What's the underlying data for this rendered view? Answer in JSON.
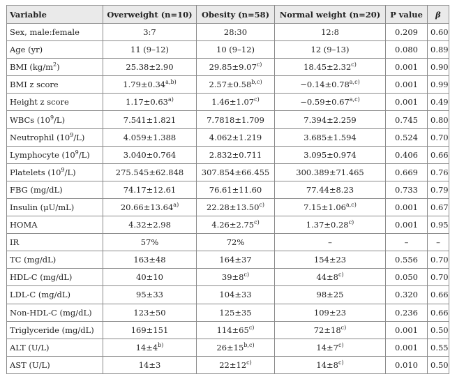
{
  "table": {
    "headers": [
      {
        "label": "Variable"
      },
      {
        "label": "Overweight (n=10)"
      },
      {
        "label": "Obesity (n=58)"
      },
      {
        "label": "Normal weight (n=20)"
      },
      {
        "label": "P value"
      },
      {
        "label": "β"
      }
    ],
    "rows": [
      {
        "variable": "Sex, male:female",
        "variable_sup": "",
        "variable_suffix": "",
        "overweight": "3:7",
        "overweight_sup": "",
        "obesity": "28:30",
        "obesity_sup": "",
        "normal": "12:8",
        "normal_sup": "",
        "p": "0.209",
        "beta": "0.60"
      },
      {
        "variable": "Age (yr)",
        "variable_sup": "",
        "variable_suffix": "",
        "overweight": "11 (9–12)",
        "overweight_sup": "",
        "obesity": "10 (9–12)",
        "obesity_sup": "",
        "normal": "12 (9–13)",
        "normal_sup": "",
        "p": "0.080",
        "beta": "0.89"
      },
      {
        "variable": "BMI (kg/m",
        "variable_sup": "2",
        "variable_suffix": ")",
        "overweight": "25.38±2.90",
        "overweight_sup": "",
        "obesity": "29.85±9.07",
        "obesity_sup": "c)",
        "normal": "18.45±2.32",
        "normal_sup": "c)",
        "p": "0.001",
        "beta": "0.90"
      },
      {
        "variable": "BMI z score",
        "variable_sup": "",
        "variable_suffix": "",
        "overweight": "1.79±0.34",
        "overweight_sup": "a,b)",
        "obesity": "2.57±0.58",
        "obesity_sup": "b,c)",
        "normal": "−0.14±0.78",
        "normal_sup": "a,c)",
        "p": "0.001",
        "beta": "0.99"
      },
      {
        "variable": "Height z score",
        "variable_sup": "",
        "variable_suffix": "",
        "overweight": "1.17±0.63",
        "overweight_sup": "a)",
        "obesity": "1.46±1.07",
        "obesity_sup": "c)",
        "normal": "−0.59±0.67",
        "normal_sup": "a,c)",
        "p": "0.001",
        "beta": "0.49"
      },
      {
        "variable": "WBCs (10",
        "variable_sup": "9",
        "variable_suffix": "/L)",
        "overweight": "7.541±1.821",
        "overweight_sup": "",
        "obesity": "7.7818±1.709",
        "obesity_sup": "",
        "normal": "7.394±2.259",
        "normal_sup": "",
        "p": "0.745",
        "beta": "0.80"
      },
      {
        "variable": "Neutrophil (10",
        "variable_sup": "9",
        "variable_suffix": "/L)",
        "overweight": "4.059±1.388",
        "overweight_sup": "",
        "obesity": "4.062±1.219",
        "obesity_sup": "",
        "normal": "3.685±1.594",
        "normal_sup": "",
        "p": "0.524",
        "beta": "0.70"
      },
      {
        "variable": "Lymphocyte (10",
        "variable_sup": "9",
        "variable_suffix": "/L)",
        "overweight": "3.040±0.764",
        "overweight_sup": "",
        "obesity": "2.832±0.711",
        "obesity_sup": "",
        "normal": "3.095±0.974",
        "normal_sup": "",
        "p": "0.406",
        "beta": "0.66"
      },
      {
        "variable": "Platelets (10",
        "variable_sup": "9",
        "variable_suffix": "/L)",
        "overweight": "275.545±62.848",
        "overweight_sup": "",
        "obesity": "307.854±66.455",
        "obesity_sup": "",
        "normal": "300.389±71.465",
        "normal_sup": "",
        "p": "0.669",
        "beta": "0.76"
      },
      {
        "variable": "FBG (mg/dL)",
        "variable_sup": "",
        "variable_suffix": "",
        "overweight": "74.17±12.61",
        "overweight_sup": "",
        "obesity": "76.61±11.60",
        "obesity_sup": "",
        "normal": "77.44±8.23",
        "normal_sup": "",
        "p": "0.733",
        "beta": "0.79"
      },
      {
        "variable": "Insulin (μU/mL)",
        "variable_sup": "",
        "variable_suffix": "",
        "overweight": "20.66±13.64",
        "overweight_sup": "a)",
        "obesity": "22.28±13.50",
        "obesity_sup": "c)",
        "normal": "7.15±1.06",
        "normal_sup": "a,c)",
        "p": "0.001",
        "beta": "0.67"
      },
      {
        "variable": "HOMA",
        "variable_sup": "",
        "variable_suffix": "",
        "overweight": "4.32±2.98",
        "overweight_sup": "",
        "obesity": "4.26±2.75",
        "obesity_sup": "c)",
        "normal": "1.37±0.28",
        "normal_sup": "c)",
        "p": "0.001",
        "beta": "0.95"
      },
      {
        "variable": "IR",
        "variable_sup": "",
        "variable_suffix": "",
        "overweight": "57%",
        "overweight_sup": "",
        "obesity": "72%",
        "obesity_sup": "",
        "normal": "–",
        "normal_sup": "",
        "p": "–",
        "beta": "–"
      },
      {
        "variable": "TC (mg/dL)",
        "variable_sup": "",
        "variable_suffix": "",
        "overweight": "163±48",
        "overweight_sup": "",
        "obesity": "164±37",
        "obesity_sup": "",
        "normal": "154±23",
        "normal_sup": "",
        "p": "0.556",
        "beta": "0.70"
      },
      {
        "variable": "HDL-C (mg/dL)",
        "variable_sup": "",
        "variable_suffix": "",
        "overweight": "40±10",
        "overweight_sup": "",
        "obesity": "39±8",
        "obesity_sup": "c)",
        "normal": "44±8",
        "normal_sup": "c)",
        "p": "0.050",
        "beta": "0.70"
      },
      {
        "variable": "LDL-C (mg/dL)",
        "variable_sup": "",
        "variable_suffix": "",
        "overweight": "95±33",
        "overweight_sup": "",
        "obesity": "104±33",
        "obesity_sup": "",
        "normal": "98±25",
        "normal_sup": "",
        "p": "0.320",
        "beta": "0.66"
      },
      {
        "variable": "Non-HDL-C (mg/dL)",
        "variable_sup": "",
        "variable_suffix": "",
        "overweight": "123±50",
        "overweight_sup": "",
        "obesity": "125±35",
        "obesity_sup": "",
        "normal": "109±23",
        "normal_sup": "",
        "p": "0.236",
        "beta": "0.66"
      },
      {
        "variable": "Triglyceride (mg/dL)",
        "variable_sup": "",
        "variable_suffix": "",
        "overweight": "169±151",
        "overweight_sup": "",
        "obesity": "114±65",
        "obesity_sup": "c)",
        "normal": "72±18",
        "normal_sup": "c)",
        "p": "0.001",
        "beta": "0.50"
      },
      {
        "variable": "ALT (U/L)",
        "variable_sup": "",
        "variable_suffix": "",
        "overweight": "14±4",
        "overweight_sup": "b)",
        "obesity": "26±15",
        "obesity_sup": "b,c)",
        "normal": "14±7",
        "normal_sup": "c)",
        "p": "0.001",
        "beta": "0.55"
      },
      {
        "variable": "AST (U/L)",
        "variable_sup": "",
        "variable_suffix": "",
        "overweight": "14±3",
        "overweight_sup": "",
        "obesity": "22±12",
        "obesity_sup": "c)",
        "normal": "14±8",
        "normal_sup": "c)",
        "p": "0.010",
        "beta": "0.50"
      }
    ]
  }
}
